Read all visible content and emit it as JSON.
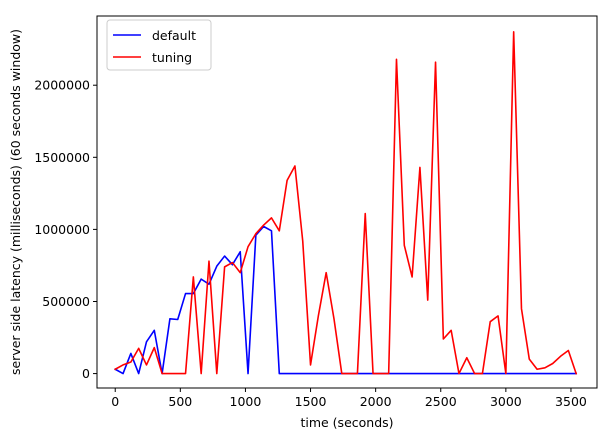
{
  "chart_data": {
    "type": "line",
    "xlabel": "time (seconds)",
    "ylabel": "server side latency (milliseconds) (60 seconds window)",
    "xlim": [
      -140,
      3700
    ],
    "ylim": [
      -100000,
      2480000
    ],
    "xticks": [
      0,
      500,
      1000,
      1500,
      2000,
      2500,
      3000,
      3500
    ],
    "xtick_labels": [
      "0",
      "500",
      "1000",
      "1500",
      "2000",
      "2500",
      "3000",
      "3500"
    ],
    "yticks": [
      0,
      500000,
      1000000,
      1500000,
      2000000
    ],
    "ytick_labels": [
      "0",
      "500000",
      "1000000",
      "1500000",
      "2000000"
    ],
    "legend_position": "top-left",
    "grid": false,
    "series": [
      {
        "name": "default",
        "color": "#0000ff",
        "x": [
          0,
          60,
          120,
          180,
          240,
          300,
          360,
          420,
          480,
          540,
          600,
          660,
          720,
          780,
          840,
          900,
          960,
          1020,
          1080,
          1140,
          1200,
          1260,
          1320,
          1380,
          1440,
          1500,
          1560,
          1620,
          1680,
          1740,
          1800,
          1860,
          1920,
          1980,
          2040,
          2100,
          2160,
          2220,
          2280,
          2340,
          2400,
          2460,
          2520,
          2580,
          2640,
          2700,
          2760,
          2820,
          2880,
          2940,
          3000,
          3060,
          3120,
          3180,
          3240,
          3300,
          3360,
          3420,
          3480,
          3540
        ],
        "y": [
          30000,
          0,
          140000,
          0,
          220000,
          300000,
          0,
          380000,
          375000,
          555000,
          555000,
          655000,
          620000,
          745000,
          815000,
          755000,
          845000,
          0,
          960000,
          1020000,
          990000,
          0,
          0,
          0,
          0,
          0,
          0,
          0,
          0,
          0,
          0,
          0,
          0,
          0,
          0,
          0,
          0,
          0,
          0,
          0,
          0,
          0,
          0,
          0,
          0,
          0,
          0,
          0,
          0,
          0,
          0,
          0,
          0,
          0,
          0,
          0,
          0,
          0,
          0,
          0
        ]
      },
      {
        "name": "tuning",
        "color": "#ff0000",
        "x": [
          0,
          60,
          120,
          180,
          240,
          300,
          360,
          420,
          480,
          540,
          600,
          660,
          720,
          780,
          840,
          900,
          960,
          1020,
          1080,
          1140,
          1200,
          1260,
          1320,
          1380,
          1440,
          1500,
          1560,
          1620,
          1680,
          1740,
          1800,
          1860,
          1920,
          1980,
          2040,
          2100,
          2160,
          2220,
          2280,
          2340,
          2400,
          2460,
          2520,
          2580,
          2640,
          2700,
          2760,
          2820,
          2880,
          2940,
          3000,
          3060,
          3120,
          3180,
          3240,
          3300,
          3360,
          3420,
          3480,
          3540
        ],
        "y": [
          30000,
          60000,
          80000,
          175000,
          60000,
          180000,
          0,
          0,
          0,
          0,
          670000,
          0,
          780000,
          0,
          740000,
          770000,
          700000,
          880000,
          970000,
          1030000,
          1080000,
          990000,
          1340000,
          1440000,
          920000,
          60000,
          400000,
          700000,
          380000,
          0,
          0,
          0,
          1110000,
          0,
          0,
          0,
          2180000,
          890000,
          670000,
          1430000,
          510000,
          2160000,
          240000,
          300000,
          0,
          110000,
          0,
          0,
          360000,
          400000,
          0,
          2370000,
          450000,
          100000,
          30000,
          40000,
          70000,
          120000,
          160000,
          0
        ]
      }
    ]
  }
}
